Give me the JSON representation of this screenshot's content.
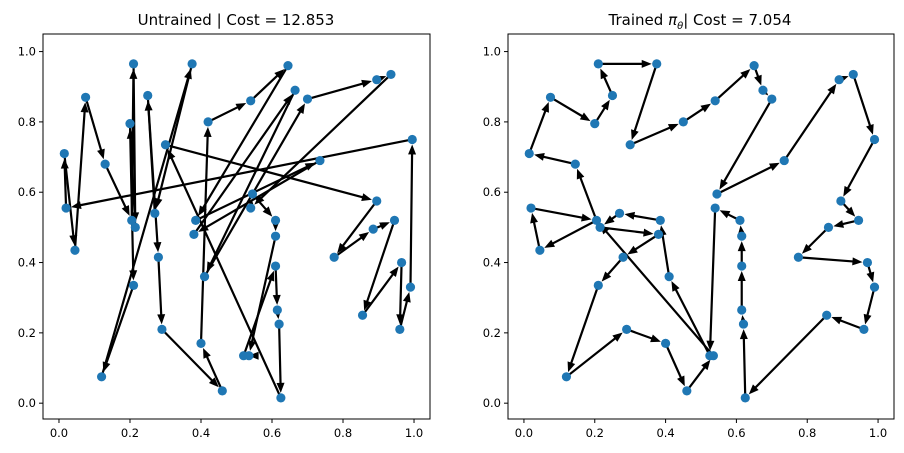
{
  "chart_data": [
    {
      "type": "scatter",
      "subtype": "tour",
      "title": "Untrained | Cost = 12.853",
      "xlabel": "",
      "ylabel": "",
      "xlim": [
        -0.045,
        1.045
      ],
      "ylim": [
        -0.045,
        1.05
      ],
      "xticks": [
        "0.0",
        "0.2",
        "0.4",
        "0.6",
        "0.8",
        "1.0"
      ],
      "yticks": [
        "0.0",
        "0.2",
        "0.4",
        "0.6",
        "0.8",
        "1.0"
      ],
      "grid": false,
      "colors": {
        "point": "#1f77b4",
        "edge": "#000000"
      },
      "points": [
        [
          0.015,
          0.71
        ],
        [
          0.02,
          0.555
        ],
        [
          0.045,
          0.435
        ],
        [
          0.075,
          0.87
        ],
        [
          0.12,
          0.075
        ],
        [
          0.13,
          0.68
        ],
        [
          0.2,
          0.795
        ],
        [
          0.21,
          0.335
        ],
        [
          0.205,
          0.52
        ],
        [
          0.215,
          0.5
        ],
        [
          0.21,
          0.965
        ],
        [
          0.25,
          0.875
        ],
        [
          0.27,
          0.54
        ],
        [
          0.28,
          0.415
        ],
        [
          0.29,
          0.21
        ],
        [
          0.3,
          0.735
        ],
        [
          0.375,
          0.965
        ],
        [
          0.38,
          0.48
        ],
        [
          0.385,
          0.52
        ],
        [
          0.4,
          0.17
        ],
        [
          0.41,
          0.36
        ],
        [
          0.42,
          0.8
        ],
        [
          0.46,
          0.035
        ],
        [
          0.52,
          0.135
        ],
        [
          0.535,
          0.135
        ],
        [
          0.54,
          0.86
        ],
        [
          0.54,
          0.555
        ],
        [
          0.545,
          0.595
        ],
        [
          0.61,
          0.52
        ],
        [
          0.61,
          0.475
        ],
        [
          0.61,
          0.39
        ],
        [
          0.615,
          0.265
        ],
        [
          0.62,
          0.225
        ],
        [
          0.625,
          0.015
        ],
        [
          0.645,
          0.96
        ],
        [
          0.665,
          0.89
        ],
        [
          0.7,
          0.865
        ],
        [
          0.735,
          0.69
        ],
        [
          0.775,
          0.415
        ],
        [
          0.855,
          0.25
        ],
        [
          0.885,
          0.495
        ],
        [
          0.895,
          0.92
        ],
        [
          0.895,
          0.575
        ],
        [
          0.935,
          0.935
        ],
        [
          0.945,
          0.52
        ],
        [
          0.96,
          0.21
        ],
        [
          0.965,
          0.4
        ],
        [
          0.99,
          0.33
        ],
        [
          0.995,
          0.75
        ]
      ],
      "tour": [
        [
          0.995,
          0.75
        ],
        [
          0.02,
          0.555
        ],
        [
          0.015,
          0.71
        ],
        [
          0.045,
          0.435
        ],
        [
          0.075,
          0.87
        ],
        [
          0.13,
          0.68
        ],
        [
          0.205,
          0.52
        ],
        [
          0.21,
          0.965
        ],
        [
          0.215,
          0.5
        ],
        [
          0.2,
          0.795
        ],
        [
          0.21,
          0.335
        ],
        [
          0.12,
          0.075
        ],
        [
          0.375,
          0.965
        ],
        [
          0.27,
          0.54
        ],
        [
          0.25,
          0.875
        ],
        [
          0.28,
          0.415
        ],
        [
          0.29,
          0.21
        ],
        [
          0.46,
          0.035
        ],
        [
          0.4,
          0.17
        ],
        [
          0.42,
          0.8
        ],
        [
          0.54,
          0.86
        ],
        [
          0.645,
          0.96
        ],
        [
          0.385,
          0.52
        ],
        [
          0.735,
          0.69
        ],
        [
          0.38,
          0.48
        ],
        [
          0.665,
          0.89
        ],
        [
          0.41,
          0.36
        ],
        [
          0.7,
          0.865
        ],
        [
          0.895,
          0.92
        ],
        [
          0.935,
          0.935
        ],
        [
          0.54,
          0.555
        ],
        [
          0.545,
          0.595
        ],
        [
          0.61,
          0.52
        ],
        [
          0.61,
          0.475
        ],
        [
          0.535,
          0.135
        ],
        [
          0.52,
          0.135
        ],
        [
          0.61,
          0.39
        ],
        [
          0.615,
          0.265
        ],
        [
          0.62,
          0.225
        ],
        [
          0.625,
          0.015
        ],
        [
          0.3,
          0.735
        ],
        [
          0.895,
          0.575
        ],
        [
          0.775,
          0.415
        ],
        [
          0.885,
          0.495
        ],
        [
          0.945,
          0.52
        ],
        [
          0.855,
          0.25
        ],
        [
          0.965,
          0.4
        ],
        [
          0.96,
          0.21
        ],
        [
          0.99,
          0.33
        ],
        [
          0.995,
          0.75
        ]
      ]
    },
    {
      "type": "scatter",
      "subtype": "tour",
      "title": "Trained πθ| Cost = 7.054",
      "title_parts": {
        "before": "Trained ",
        "symbol": "π",
        "subscript": "θ",
        "after": "| Cost = 7.054"
      },
      "xlabel": "",
      "ylabel": "",
      "xlim": [
        -0.045,
        1.045
      ],
      "ylim": [
        -0.045,
        1.05
      ],
      "xticks": [
        "0.0",
        "0.2",
        "0.4",
        "0.6",
        "0.8",
        "1.0"
      ],
      "yticks": [
        "0.0",
        "0.2",
        "0.4",
        "0.6",
        "0.8",
        "1.0"
      ],
      "grid": false,
      "colors": {
        "point": "#1f77b4",
        "edge": "#000000"
      },
      "points": [
        [
          0.015,
          0.71
        ],
        [
          0.02,
          0.555
        ],
        [
          0.045,
          0.435
        ],
        [
          0.075,
          0.87
        ],
        [
          0.12,
          0.075
        ],
        [
          0.145,
          0.68
        ],
        [
          0.2,
          0.795
        ],
        [
          0.21,
          0.335
        ],
        [
          0.205,
          0.52
        ],
        [
          0.215,
          0.5
        ],
        [
          0.21,
          0.965
        ],
        [
          0.25,
          0.875
        ],
        [
          0.27,
          0.54
        ],
        [
          0.28,
          0.415
        ],
        [
          0.29,
          0.21
        ],
        [
          0.3,
          0.735
        ],
        [
          0.375,
          0.965
        ],
        [
          0.38,
          0.48
        ],
        [
          0.385,
          0.52
        ],
        [
          0.4,
          0.17
        ],
        [
          0.41,
          0.36
        ],
        [
          0.45,
          0.8
        ],
        [
          0.46,
          0.035
        ],
        [
          0.525,
          0.135
        ],
        [
          0.535,
          0.135
        ],
        [
          0.54,
          0.86
        ],
        [
          0.54,
          0.555
        ],
        [
          0.545,
          0.595
        ],
        [
          0.61,
          0.52
        ],
        [
          0.615,
          0.475
        ],
        [
          0.615,
          0.39
        ],
        [
          0.615,
          0.265
        ],
        [
          0.62,
          0.225
        ],
        [
          0.625,
          0.015
        ],
        [
          0.65,
          0.96
        ],
        [
          0.675,
          0.89
        ],
        [
          0.7,
          0.865
        ],
        [
          0.735,
          0.69
        ],
        [
          0.775,
          0.415
        ],
        [
          0.855,
          0.25
        ],
        [
          0.86,
          0.5
        ],
        [
          0.89,
          0.92
        ],
        [
          0.895,
          0.575
        ],
        [
          0.93,
          0.935
        ],
        [
          0.945,
          0.52
        ],
        [
          0.96,
          0.21
        ],
        [
          0.97,
          0.4
        ],
        [
          0.99,
          0.33
        ],
        [
          0.99,
          0.75
        ]
      ],
      "tour": [
        [
          0.02,
          0.555
        ],
        [
          0.205,
          0.52
        ],
        [
          0.145,
          0.68
        ],
        [
          0.015,
          0.71
        ],
        [
          0.075,
          0.87
        ],
        [
          0.2,
          0.795
        ],
        [
          0.25,
          0.875
        ],
        [
          0.21,
          0.965
        ],
        [
          0.375,
          0.965
        ],
        [
          0.3,
          0.735
        ],
        [
          0.45,
          0.8
        ],
        [
          0.54,
          0.86
        ],
        [
          0.65,
          0.96
        ],
        [
          0.675,
          0.89
        ],
        [
          0.7,
          0.865
        ],
        [
          0.545,
          0.595
        ],
        [
          0.735,
          0.69
        ],
        [
          0.89,
          0.92
        ],
        [
          0.93,
          0.935
        ],
        [
          0.99,
          0.75
        ],
        [
          0.895,
          0.575
        ],
        [
          0.945,
          0.52
        ],
        [
          0.86,
          0.5
        ],
        [
          0.775,
          0.415
        ],
        [
          0.97,
          0.4
        ],
        [
          0.99,
          0.33
        ],
        [
          0.96,
          0.21
        ],
        [
          0.855,
          0.25
        ],
        [
          0.625,
          0.015
        ],
        [
          0.62,
          0.225
        ],
        [
          0.615,
          0.265
        ],
        [
          0.615,
          0.39
        ],
        [
          0.615,
          0.475
        ],
        [
          0.61,
          0.52
        ],
        [
          0.54,
          0.555
        ],
        [
          0.525,
          0.135
        ],
        [
          0.41,
          0.36
        ],
        [
          0.385,
          0.52
        ],
        [
          0.27,
          0.54
        ],
        [
          0.215,
          0.5
        ],
        [
          0.38,
          0.48
        ],
        [
          0.28,
          0.415
        ],
        [
          0.21,
          0.335
        ],
        [
          0.12,
          0.075
        ],
        [
          0.29,
          0.21
        ],
        [
          0.4,
          0.17
        ],
        [
          0.46,
          0.035
        ],
        [
          0.535,
          0.135
        ],
        [
          0.205,
          0.52
        ],
        [
          0.045,
          0.435
        ],
        [
          0.02,
          0.555
        ]
      ]
    }
  ]
}
